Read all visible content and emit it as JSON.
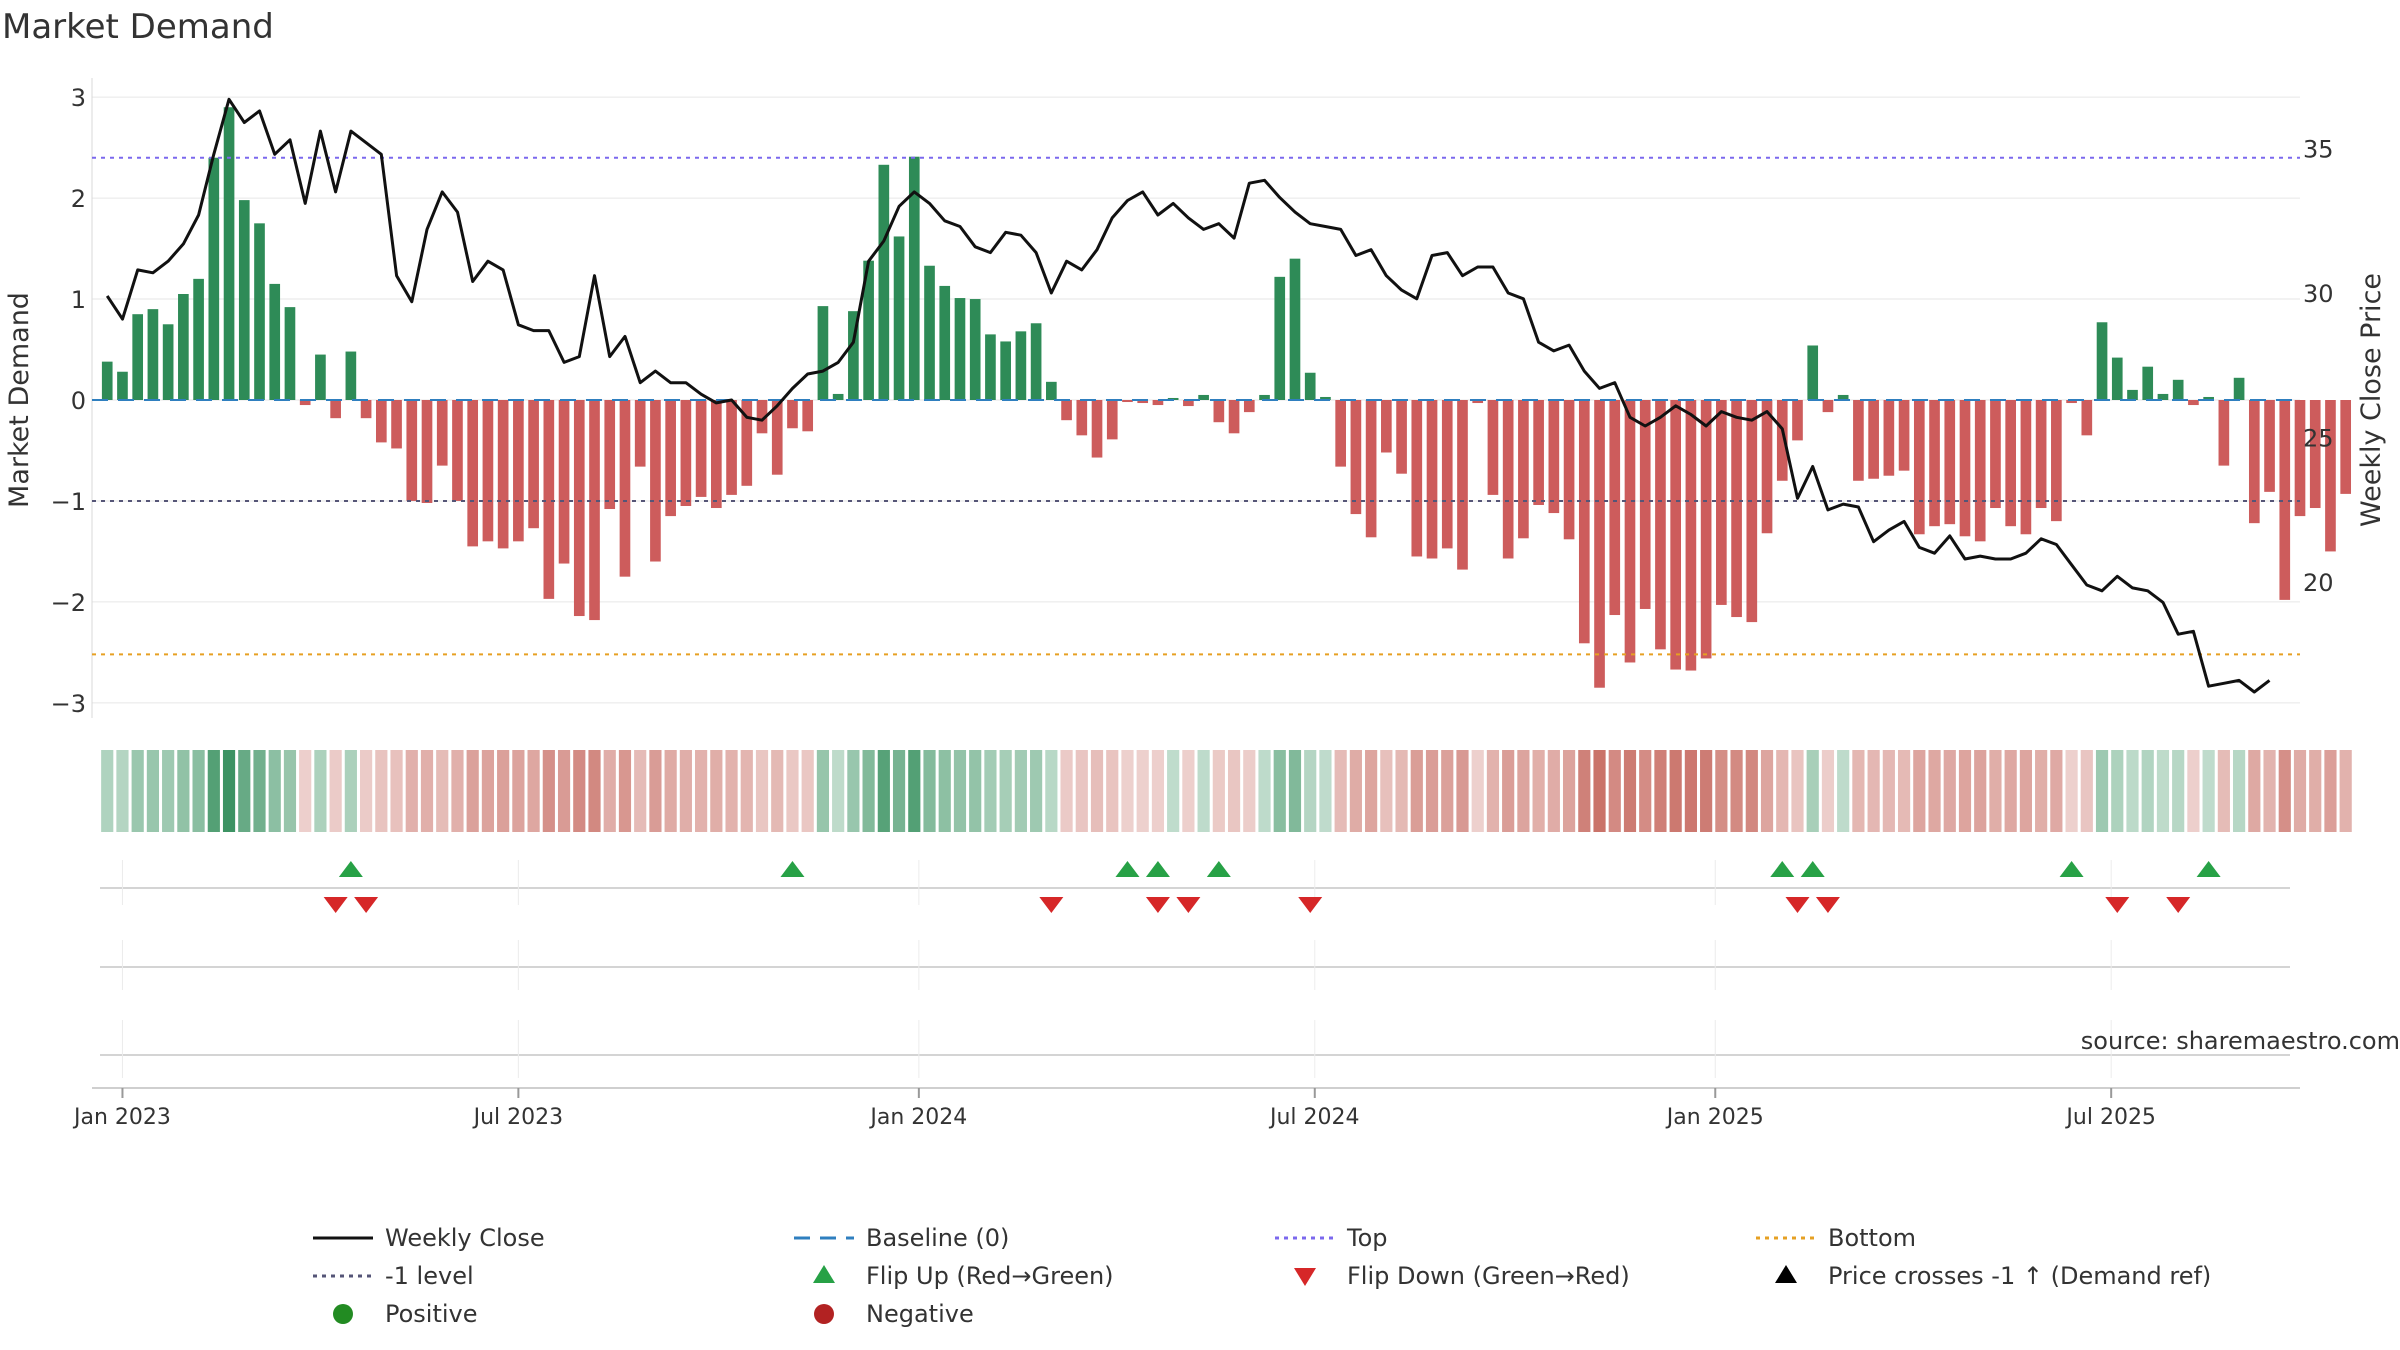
{
  "chart_data": {
    "type": "bar+line",
    "title": "Market Demand",
    "ylabel_left": "Market Demand",
    "ylabel_right": "Weekly Close Price",
    "ylim_left": [
      -3.15,
      3.15
    ],
    "ylim_right": [
      15.3,
      37.3
    ],
    "yticks_left": [
      3,
      2,
      1,
      0,
      -1,
      -2,
      -3
    ],
    "ytick_labels_left": [
      "3",
      "2",
      "1",
      "0",
      "−1",
      "−2",
      "−3"
    ],
    "yticks_right": [
      35,
      30,
      25,
      20
    ],
    "ytick_labels_right": [
      "35",
      "30",
      "25",
      "20"
    ],
    "xticks": [
      1.0,
      27.0,
      53.3,
      79.3,
      105.6,
      131.6
    ],
    "xtick_labels": [
      "Jan 2023",
      "Jul 2023",
      "Jan 2024",
      "Jul 2024",
      "Jan 2025",
      "Jul 2025"
    ],
    "xrange": [
      -1,
      144
    ],
    "reference_lines": {
      "top": 2.4,
      "bottom": -2.52,
      "minus_one": -1,
      "baseline": 0
    },
    "demand": [
      0.38,
      0.28,
      0.85,
      0.9,
      0.75,
      1.05,
      1.2,
      2.4,
      2.9,
      1.98,
      1.75,
      1.15,
      0.92,
      -0.05,
      0.45,
      -0.18,
      0.48,
      -0.18,
      -0.42,
      -0.48,
      -1.0,
      -1.02,
      -0.65,
      -1.0,
      -1.45,
      -1.4,
      -1.47,
      -1.4,
      -1.27,
      -1.97,
      -1.62,
      -2.14,
      -2.18,
      -1.08,
      -1.75,
      -0.66,
      -1.6,
      -1.15,
      -1.05,
      -0.96,
      -1.07,
      -0.94,
      -0.85,
      -0.33,
      -0.74,
      -0.28,
      -0.31,
      0.93,
      0.06,
      0.88,
      1.38,
      2.33,
      1.62,
      2.41,
      1.33,
      1.13,
      1.01,
      1.0,
      0.65,
      0.58,
      0.68,
      0.76,
      0.18,
      -0.2,
      -0.35,
      -0.57,
      -0.39,
      -0.02,
      -0.03,
      -0.05,
      0.02,
      -0.06,
      0.05,
      -0.22,
      -0.33,
      -0.12,
      0.05,
      1.22,
      1.4,
      0.27,
      0.03,
      -0.66,
      -1.13,
      -1.36,
      -0.52,
      -0.73,
      -1.55,
      -1.57,
      -1.47,
      -1.68,
      -0.03,
      -0.94,
      -1.57,
      -1.37,
      -1.04,
      -1.12,
      -1.38,
      -2.41,
      -2.85,
      -2.13,
      -2.6,
      -2.07,
      -2.47,
      -2.67,
      -2.68,
      -2.56,
      -2.03,
      -2.15,
      -2.2,
      -1.32,
      -0.8,
      -0.4,
      0.54,
      -0.12,
      0.05,
      -0.8,
      -0.78,
      -0.75,
      -0.7,
      -1.33,
      -1.25,
      -1.23,
      -1.35,
      -1.4,
      -1.07,
      -1.25,
      -1.33,
      -1.07,
      -1.2,
      -0.03,
      -0.35,
      0.77,
      0.42,
      0.1,
      0.33,
      0.06,
      0.2,
      -0.05,
      0.03,
      -0.65,
      0.22,
      -1.22,
      -0.91,
      -1.98,
      -1.15,
      -1.07,
      -1.5,
      -0.93
    ],
    "price": [
      29.9,
      29.1,
      30.8,
      30.7,
      31.1,
      31.7,
      32.7,
      34.8,
      36.7,
      35.9,
      36.3,
      34.8,
      35.3,
      33.1,
      35.6,
      33.5,
      35.6,
      35.2,
      34.8,
      30.6,
      29.7,
      32.2,
      33.5,
      32.8,
      30.4,
      31.1,
      30.8,
      28.9,
      28.7,
      28.7,
      27.6,
      27.8,
      30.6,
      27.8,
      28.5,
      26.9,
      27.3,
      26.9,
      26.9,
      26.5,
      26.2,
      26.3,
      25.7,
      25.6,
      26.1,
      26.7,
      27.2,
      27.3,
      27.6,
      28.3,
      31.1,
      31.8,
      33.0,
      33.5,
      33.1,
      32.5,
      32.3,
      31.6,
      31.4,
      32.1,
      32.0,
      31.4,
      30.0,
      31.1,
      30.8,
      31.5,
      32.6,
      33.2,
      33.5,
      32.7,
      33.1,
      32.6,
      32.2,
      32.4,
      31.9,
      33.8,
      33.9,
      33.3,
      32.8,
      32.4,
      32.3,
      32.2,
      31.3,
      31.5,
      30.6,
      30.1,
      29.8,
      31.3,
      31.4,
      30.6,
      30.9,
      30.9,
      30.0,
      29.8,
      28.3,
      28.0,
      28.2,
      27.3,
      26.7,
      26.9,
      25.7,
      25.4,
      25.7,
      26.1,
      25.8,
      25.4,
      25.9,
      25.7,
      25.6,
      25.9,
      25.3,
      22.9,
      24.0,
      22.5,
      22.7,
      22.6,
      21.4,
      21.8,
      22.1,
      21.2,
      21.0,
      21.6,
      20.8,
      20.9,
      20.8,
      20.8,
      21.0,
      21.5,
      21.3,
      20.6,
      19.9,
      19.7,
      20.2,
      19.8,
      19.7,
      19.3,
      18.2,
      18.3,
      16.4,
      16.5,
      16.6,
      16.2,
      16.6
    ]
  },
  "heat_strip": {
    "label": "weekly demand heat strip"
  },
  "markers": {
    "flip_up_weeks": [
      16,
      45,
      67,
      69,
      73,
      110,
      112,
      129,
      138
    ],
    "flip_down_weeks": [
      15,
      17,
      62,
      69,
      71,
      79,
      111,
      113,
      132,
      136
    ]
  },
  "legend": {
    "weekly_close": "Weekly Close",
    "baseline": "Baseline (0)",
    "top": "Top",
    "bottom": "Bottom",
    "minus_one": "-1 level",
    "flip_up": "Flip Up (Red→Green)",
    "flip_down": "Flip Down (Green→Red)",
    "price_cross": "Price crosses -1 ↑ (Demand ref)",
    "positive": "Positive",
    "negative": "Negative"
  },
  "source": "source: sharemaestro.com",
  "colors": {
    "positive": "#2e8b57",
    "negative": "#cd5c5c",
    "line": "#111111",
    "top": "#7b68ee",
    "bottom": "#e6a023",
    "minus_one": "#555577",
    "baseline": "#2f7fbf",
    "flip_up": "#27a146",
    "flip_down": "#d62728",
    "positive_dot": "#228b22",
    "negative_dot": "#b22222"
  }
}
